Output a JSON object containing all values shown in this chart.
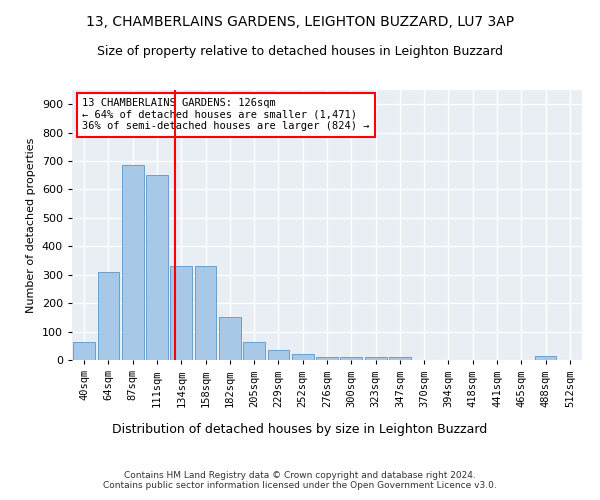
{
  "title": "13, CHAMBERLAINS GARDENS, LEIGHTON BUZZARD, LU7 3AP",
  "subtitle": "Size of property relative to detached houses in Leighton Buzzard",
  "xlabel": "Distribution of detached houses by size in Leighton Buzzard",
  "ylabel": "Number of detached properties",
  "footer": "Contains HM Land Registry data © Crown copyright and database right 2024.\nContains public sector information licensed under the Open Government Licence v3.0.",
  "categories": [
    "40sqm",
    "64sqm",
    "87sqm",
    "111sqm",
    "134sqm",
    "158sqm",
    "182sqm",
    "205sqm",
    "229sqm",
    "252sqm",
    "276sqm",
    "300sqm",
    "323sqm",
    "347sqm",
    "370sqm",
    "394sqm",
    "418sqm",
    "441sqm",
    "465sqm",
    "488sqm",
    "512sqm"
  ],
  "values": [
    65,
    310,
    685,
    650,
    330,
    330,
    150,
    65,
    35,
    20,
    10,
    10,
    10,
    10,
    0,
    0,
    0,
    0,
    0,
    15,
    0
  ],
  "bar_color": "#a8c8e8",
  "bar_edge_color": "#6aa0cc",
  "red_line_x": 3.75,
  "annotation_text": "13 CHAMBERLAINS GARDENS: 126sqm\n← 64% of detached houses are smaller (1,471)\n36% of semi-detached houses are larger (824) →",
  "annotation_box_color": "white",
  "annotation_box_edge": "red",
  "ylim": [
    0,
    950
  ],
  "yticks": [
    0,
    100,
    200,
    300,
    400,
    500,
    600,
    700,
    800,
    900
  ],
  "background_color": "#e8eef4",
  "grid_color": "white",
  "title_fontsize": 10,
  "subtitle_fontsize": 9
}
